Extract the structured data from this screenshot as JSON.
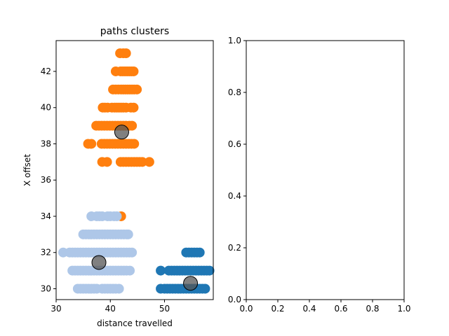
{
  "chart_data": [
    {
      "type": "scatter",
      "title": "paths clusters",
      "xlabel": "distance travelled",
      "ylabel": "X offset",
      "xlim": [
        30,
        59
      ],
      "ylim": [
        29.4,
        43.7
      ],
      "xticks": [
        30,
        40,
        50
      ],
      "yticks": [
        30,
        32,
        34,
        36,
        38,
        40,
        42
      ],
      "grid": false,
      "series": [
        {
          "color": "#ff7f0e",
          "points": [
            [
              41.8,
              43
            ],
            [
              42.4,
              43
            ],
            [
              42.9,
              43
            ],
            [
              41.0,
              42
            ],
            [
              41.9,
              42
            ],
            [
              42.3,
              42
            ],
            [
              42.7,
              42
            ],
            [
              43.1,
              42
            ],
            [
              43.5,
              42
            ],
            [
              43.9,
              42
            ],
            [
              44.3,
              42
            ],
            [
              40.5,
              41
            ],
            [
              41.0,
              41
            ],
            [
              41.5,
              41
            ],
            [
              42.0,
              41
            ],
            [
              42.4,
              41
            ],
            [
              42.8,
              41
            ],
            [
              43.2,
              41
            ],
            [
              43.6,
              41
            ],
            [
              44.0,
              41
            ],
            [
              44.4,
              41
            ],
            [
              44.9,
              41
            ],
            [
              38.6,
              40
            ],
            [
              39.0,
              40
            ],
            [
              39.5,
              40
            ],
            [
              40.3,
              40
            ],
            [
              40.8,
              40
            ],
            [
              41.2,
              40
            ],
            [
              41.6,
              40
            ],
            [
              42.0,
              40
            ],
            [
              42.4,
              40
            ],
            [
              42.9,
              40
            ],
            [
              43.8,
              40
            ],
            [
              44.3,
              40
            ],
            [
              37.4,
              39
            ],
            [
              37.9,
              39
            ],
            [
              38.4,
              39
            ],
            [
              38.9,
              39
            ],
            [
              39.4,
              39
            ],
            [
              39.9,
              39
            ],
            [
              40.4,
              39
            ],
            [
              40.9,
              39
            ],
            [
              41.4,
              39
            ],
            [
              41.9,
              39
            ],
            [
              42.4,
              39
            ],
            [
              42.9,
              39
            ],
            [
              43.5,
              39
            ],
            [
              44.0,
              39
            ],
            [
              35.9,
              38
            ],
            [
              36.5,
              38
            ],
            [
              38.4,
              38
            ],
            [
              38.9,
              38
            ],
            [
              39.4,
              38
            ],
            [
              39.9,
              38
            ],
            [
              40.4,
              38
            ],
            [
              40.9,
              38
            ],
            [
              41.4,
              38
            ],
            [
              41.9,
              38
            ],
            [
              42.4,
              38
            ],
            [
              42.9,
              38
            ],
            [
              43.4,
              38
            ],
            [
              43.9,
              38
            ],
            [
              44.4,
              38
            ],
            [
              38.5,
              37
            ],
            [
              39.4,
              37
            ],
            [
              41.9,
              37
            ],
            [
              42.4,
              37
            ],
            [
              42.9,
              37
            ],
            [
              43.4,
              37
            ],
            [
              43.9,
              37
            ],
            [
              44.4,
              37
            ],
            [
              44.9,
              37
            ],
            [
              45.4,
              37
            ],
            [
              45.9,
              37
            ],
            [
              47.2,
              37
            ],
            [
              42.0,
              34
            ]
          ]
        },
        {
          "color": "#aec7e8",
          "points": [
            [
              36.5,
              34
            ],
            [
              37.5,
              34
            ],
            [
              38.0,
              34
            ],
            [
              38.5,
              34
            ],
            [
              39.5,
              34
            ],
            [
              40.0,
              34
            ],
            [
              40.7,
              34
            ],
            [
              41.2,
              34
            ],
            [
              35.0,
              33
            ],
            [
              35.5,
              33
            ],
            [
              36.0,
              33
            ],
            [
              36.5,
              33
            ],
            [
              37.0,
              33
            ],
            [
              37.5,
              33
            ],
            [
              38.0,
              33
            ],
            [
              38.5,
              33
            ],
            [
              39.0,
              33
            ],
            [
              39.5,
              33
            ],
            [
              40.0,
              33
            ],
            [
              40.5,
              33
            ],
            [
              41.0,
              33
            ],
            [
              41.5,
              33
            ],
            [
              42.0,
              33
            ],
            [
              42.5,
              33
            ],
            [
              43.0,
              33
            ],
            [
              43.3,
              33
            ],
            [
              31.3,
              32
            ],
            [
              32.5,
              32
            ],
            [
              33.0,
              32
            ],
            [
              33.5,
              32
            ],
            [
              34.0,
              32
            ],
            [
              34.5,
              32
            ],
            [
              35.0,
              32
            ],
            [
              35.5,
              32
            ],
            [
              36.0,
              32
            ],
            [
              36.5,
              32
            ],
            [
              37.0,
              32
            ],
            [
              37.5,
              32
            ],
            [
              38.0,
              32
            ],
            [
              38.5,
              32
            ],
            [
              39.0,
              32
            ],
            [
              39.5,
              32
            ],
            [
              40.0,
              32
            ],
            [
              40.5,
              32
            ],
            [
              41.0,
              32
            ],
            [
              41.5,
              32
            ],
            [
              42.0,
              32
            ],
            [
              42.5,
              32
            ],
            [
              43.0,
              32
            ],
            [
              43.5,
              32
            ],
            [
              44.0,
              32
            ],
            [
              33.0,
              31
            ],
            [
              33.5,
              31
            ],
            [
              34.0,
              31
            ],
            [
              34.5,
              31
            ],
            [
              35.0,
              31
            ],
            [
              35.5,
              31
            ],
            [
              36.0,
              31
            ],
            [
              36.5,
              31
            ],
            [
              37.0,
              31
            ],
            [
              37.5,
              31
            ],
            [
              38.0,
              31
            ],
            [
              38.5,
              31
            ],
            [
              39.0,
              31
            ],
            [
              39.5,
              31
            ],
            [
              40.0,
              31
            ],
            [
              40.5,
              31
            ],
            [
              41.0,
              31
            ],
            [
              41.5,
              31
            ],
            [
              42.0,
              31
            ],
            [
              42.5,
              31
            ],
            [
              43.0,
              31
            ],
            [
              43.6,
              31
            ],
            [
              34.0,
              30
            ],
            [
              34.5,
              30
            ],
            [
              35.0,
              30
            ],
            [
              35.5,
              30
            ],
            [
              36.0,
              30
            ],
            [
              36.5,
              30
            ],
            [
              37.0,
              30
            ],
            [
              37.5,
              30
            ],
            [
              38.5,
              30
            ],
            [
              39.0,
              30
            ],
            [
              39.5,
              30
            ],
            [
              40.0,
              30
            ],
            [
              40.5,
              30
            ],
            [
              41.0,
              30
            ],
            [
              41.6,
              30
            ]
          ]
        },
        {
          "color": "#1f77b4",
          "points": [
            [
              54.0,
              32
            ],
            [
              54.5,
              32
            ],
            [
              55.0,
              32
            ],
            [
              55.5,
              32
            ],
            [
              56.0,
              32
            ],
            [
              56.5,
              32
            ],
            [
              49.3,
              31
            ],
            [
              50.8,
              31
            ],
            [
              51.3,
              31
            ],
            [
              51.8,
              31
            ],
            [
              52.3,
              31
            ],
            [
              52.8,
              31
            ],
            [
              53.3,
              31
            ],
            [
              53.8,
              31
            ],
            [
              54.3,
              31
            ],
            [
              54.8,
              31
            ],
            [
              55.3,
              31
            ],
            [
              55.8,
              31
            ],
            [
              56.3,
              31
            ],
            [
              56.8,
              31
            ],
            [
              57.3,
              31
            ],
            [
              57.8,
              31
            ],
            [
              58.3,
              31
            ],
            [
              49.3,
              30
            ],
            [
              50.0,
              30
            ],
            [
              50.5,
              30
            ],
            [
              51.0,
              30
            ],
            [
              51.5,
              30
            ],
            [
              52.0,
              30
            ],
            [
              52.5,
              30
            ],
            [
              53.0,
              30
            ],
            [
              53.5,
              30
            ],
            [
              54.0,
              30
            ],
            [
              54.5,
              30
            ],
            [
              55.0,
              30
            ],
            [
              55.5,
              30
            ],
            [
              56.0,
              30
            ],
            [
              56.5,
              30
            ],
            [
              57.0,
              30
            ],
            [
              57.5,
              30
            ]
          ]
        }
      ],
      "centroids": {
        "color": "#555555",
        "points": [
          [
            42.1,
            38.65
          ],
          [
            37.9,
            31.45
          ],
          [
            54.8,
            30.3
          ]
        ]
      }
    },
    {
      "type": "scatter",
      "title": "",
      "xlabel": "",
      "ylabel": "",
      "xlim": [
        0.0,
        1.0
      ],
      "ylim": [
        0.0,
        1.0
      ],
      "xticks": [
        "0.0",
        "0.2",
        "0.4",
        "0.6",
        "0.8",
        "1.0"
      ],
      "yticks": [
        "0.0",
        "0.2",
        "0.4",
        "0.6",
        "0.8",
        "1.0"
      ],
      "grid": false,
      "series": []
    }
  ]
}
